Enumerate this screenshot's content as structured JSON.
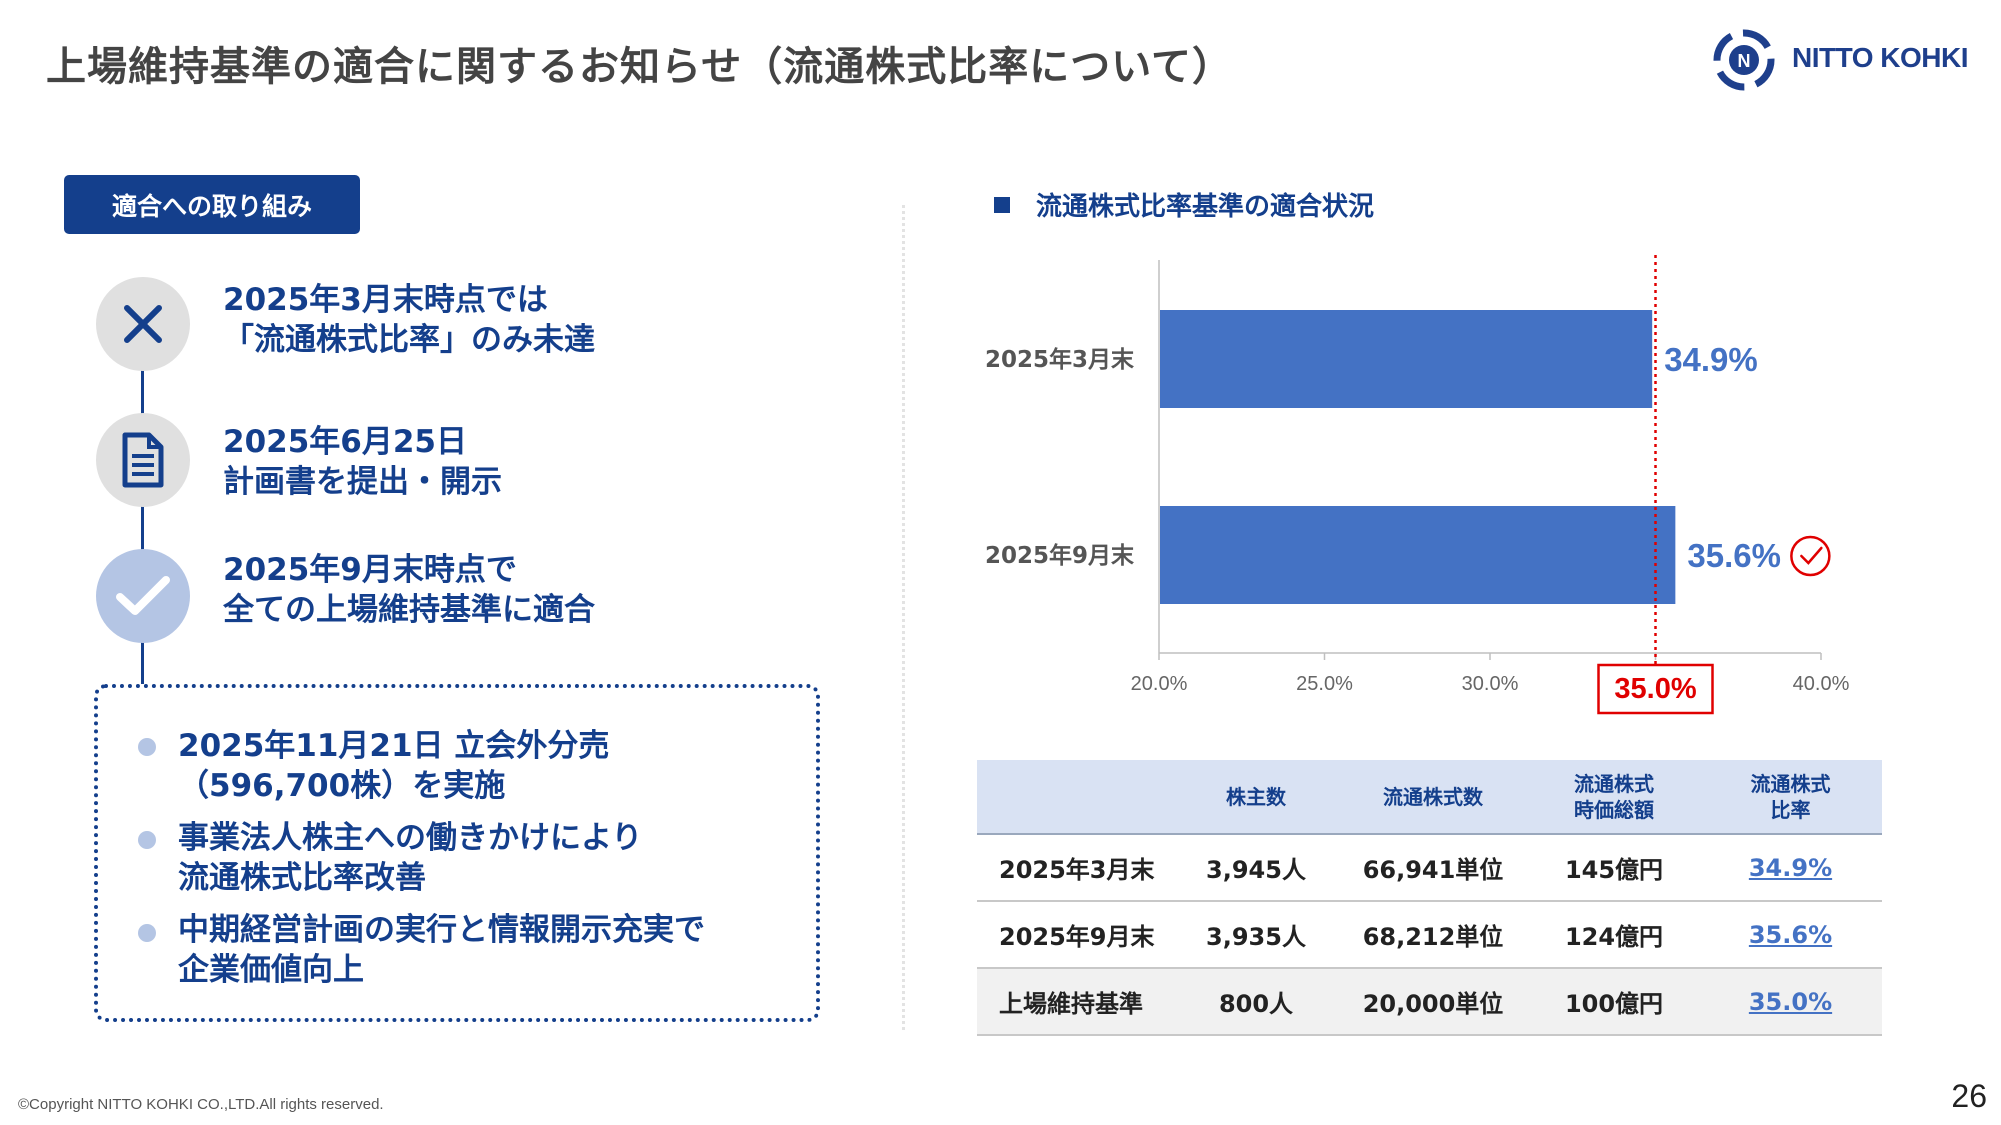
{
  "header": {
    "title": "上場維持基準の適合に関するお知らせ（流通株式比率について）",
    "logo_text": "NITTO KOHKI"
  },
  "left": {
    "tag": "適合への取り組み",
    "steps": [
      {
        "icon": "x-icon",
        "lines": [
          "2025年3月末時点では",
          "「流通株式比率」のみ未達"
        ]
      },
      {
        "icon": "document-icon",
        "lines": [
          "2025年6月25日",
          "計画書を提出・開示"
        ]
      },
      {
        "icon": "check-icon",
        "lines": [
          "2025年9月末時点で",
          "全ての上場維持基準に適合"
        ]
      }
    ],
    "bullets": [
      {
        "lines": [
          "2025年11月21日 立会外分売",
          "（596,700株）を実施"
        ]
      },
      {
        "lines": [
          "事業法人株主への働きかけにより",
          "流通株式比率改善"
        ]
      },
      {
        "lines": [
          "中期経営計画の実行と情報開示充実で",
          "企業価値向上"
        ]
      }
    ]
  },
  "chart_title": "流通株式比率基準の適合状況",
  "chart_data": {
    "type": "bar",
    "orientation": "horizontal",
    "categories": [
      "2025年3月末",
      "2025年9月末"
    ],
    "values": [
      34.9,
      35.6
    ],
    "value_labels": [
      "34.9%",
      "35.6%"
    ],
    "xlim": [
      20,
      40
    ],
    "xticks": [
      20,
      25,
      30,
      35,
      40
    ],
    "xtick_labels": [
      "20.0%",
      "25.0%",
      "30.0%",
      "35.0%",
      "40.0%"
    ],
    "threshold": 35,
    "threshold_label": "35.0%",
    "bar_color": "#4472c4",
    "threshold_color": "#e00000"
  },
  "table": {
    "headers": [
      "",
      "株主数",
      "流通株式数",
      "流通株式\n時価総額",
      "流通株式\n比率"
    ],
    "rows": [
      [
        "2025年3月末",
        "3,945人",
        "66,941単位",
        "145億円",
        "34.9%"
      ],
      [
        "2025年9月末",
        "3,935人",
        "68,212単位",
        "124億円",
        "35.6%"
      ],
      [
        "上場維持基準",
        "800人",
        "20,000単位",
        "100億円",
        "35.0%"
      ]
    ]
  },
  "footer": {
    "copyright": "©Copyright NITTO KOHKI CO.,LTD.All rights reserved.",
    "page": "26"
  },
  "colors": {
    "navy": "#143f8c",
    "bar": "#4472c4",
    "accent_red": "#e00000",
    "light_blue": "#b4c5e4"
  }
}
